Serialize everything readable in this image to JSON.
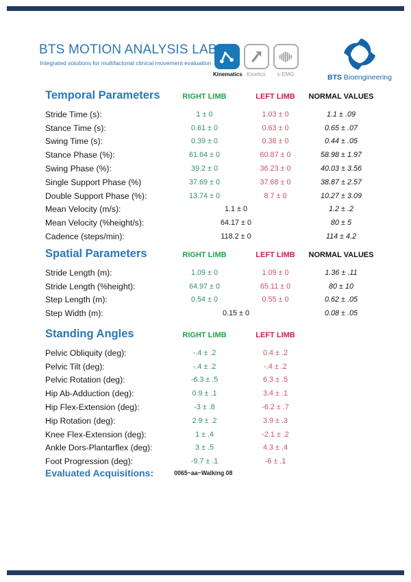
{
  "header": {
    "title": "BTS MOTION ANALYSIS LAB",
    "subtitle": "Integrated solutions for multifactorial clinical movement evaluation",
    "modules": [
      {
        "label": "Kinematics",
        "icon": "kinematics-icon",
        "active": true
      },
      {
        "label": "Kinetics",
        "icon": "kinetics-arrow-icon",
        "active": false
      },
      {
        "label": "s-EMG",
        "icon": "semg-signal-icon",
        "active": false
      }
    ],
    "brand": {
      "bold": "BTS",
      "rest": " Bioengineering",
      "icon": "bts-swirl-logo"
    }
  },
  "colors": {
    "heading_blue": "#2b76b9",
    "title_blue": "#2e75b5",
    "brand_blue": "#1565ab",
    "right_limb_green_header": "#1fa24e",
    "left_limb_red_header": "#c81e4e",
    "right_value_green": "#2f8f63",
    "left_value_red": "#ca4f63",
    "rule_navy": "#223a5e",
    "active_module_blue": "#1779b9"
  },
  "sections": [
    {
      "title": "Temporal Parameters",
      "columns": [
        "RIGHT LIMB",
        "LEFT LIMB",
        "NORMAL VALUES"
      ],
      "rows": [
        {
          "label": "Stride Time (s):",
          "right": "1 ± 0",
          "left": "1.03 ± 0",
          "normal": "1.1 ± .09"
        },
        {
          "label": "Stance Time (s):",
          "right": "0.61 ± 0",
          "left": "0.63 ± 0",
          "normal": "0.65 ± .07"
        },
        {
          "label": "Swing Time (s):",
          "right": "0.39 ± 0",
          "left": "0.38 ± 0",
          "normal": "0.44 ± .05"
        },
        {
          "label": "Stance Phase (%):",
          "right": "61.64 ± 0",
          "left": "60.87 ± 0",
          "normal": "58.98 ± 1.97"
        },
        {
          "label": "Swing Phase (%):",
          "right": "39.2 ± 0",
          "left": "36.23 ± 0",
          "normal": "40.03 ± 3.56"
        },
        {
          "label": "Single Support Phase (%)",
          "right": "37.69 ± 0",
          "left": "37.68 ± 0",
          "normal": "38.87 ± 2.57"
        },
        {
          "label": "Double Support Phase (%):",
          "right": "13.74 ± 0",
          "left": "8.7 ± 0",
          "normal": "10.27 ± 3.09"
        },
        {
          "label": "Mean Velocity (m/s):",
          "merged": "1.1 ± 0",
          "normal": "1.2 ± .2"
        },
        {
          "label": "Mean Velocity (%height/s):",
          "merged": "64.17 ± 0",
          "normal": "80 ± 5"
        },
        {
          "label": "Cadence (steps/min):",
          "merged": "118.2 ± 0",
          "normal": "114 ± 4.2"
        }
      ]
    },
    {
      "title": "Spatial Parameters",
      "columns": [
        "RIGHT LIMB",
        "LEFT LIMB",
        "NORMAL VALUES"
      ],
      "rows": [
        {
          "label": "Stride Length (m):",
          "right": "1.09 ± 0",
          "left": "1.09 ± 0",
          "normal": "1.36 ± .11"
        },
        {
          "label": "Stride Length (%height):",
          "right": "64.97 ± 0",
          "left": "65.11 ± 0",
          "normal": "80 ± 10"
        },
        {
          "label": "Step Length (m):",
          "right": "0.54 ± 0",
          "left": "0.55 ± 0",
          "normal": "0.62 ± .05"
        },
        {
          "label": "Step Width (m):",
          "merged": "0.15 ± 0",
          "normal": "0.08 ± .05"
        }
      ]
    },
    {
      "title": "Standing Angles",
      "columns": [
        "RIGHT LIMB",
        "LEFT LIMB"
      ],
      "rows": [
        {
          "label": "Pelvic Obliquity (deg):",
          "right": "-.4 ± .2",
          "left": "0.4 ± .2"
        },
        {
          "label": "Pelvic Tilt (deg):",
          "right": "-.4 ± .2",
          "left": "-.4 ± .2"
        },
        {
          "label": "Pelvic Rotation (deg):",
          "right": "-6.3 ± .5",
          "left": "6.3 ± .5"
        },
        {
          "label": "Hip Ab-Adduction (deg):",
          "right": "0.9 ± .1",
          "left": "3.4 ± .1"
        },
        {
          "label": "Hip Flex-Extension (deg):",
          "right": "-3 ± .8",
          "left": "-6.2 ± .7"
        },
        {
          "label": "Hip Rotation (deg):",
          "right": "2.9 ± .2",
          "left": "3.9 ± .3"
        },
        {
          "label": "Knee Flex-Extension (deg):",
          "right": "1 ± .4",
          "left": "-2.1 ± .2"
        },
        {
          "label": "Ankle Dors-Plantarflex (deg):",
          "right": "3 ± .5",
          "left": "4.3 ± .4"
        },
        {
          "label": "Foot Progression (deg):",
          "right": "-9.7 ± .1",
          "left": "-6 ± .1"
        }
      ]
    }
  ],
  "acquisitions": {
    "label": "Evaluated Acquisitions:",
    "value": "0065~aa~Walking 08"
  }
}
